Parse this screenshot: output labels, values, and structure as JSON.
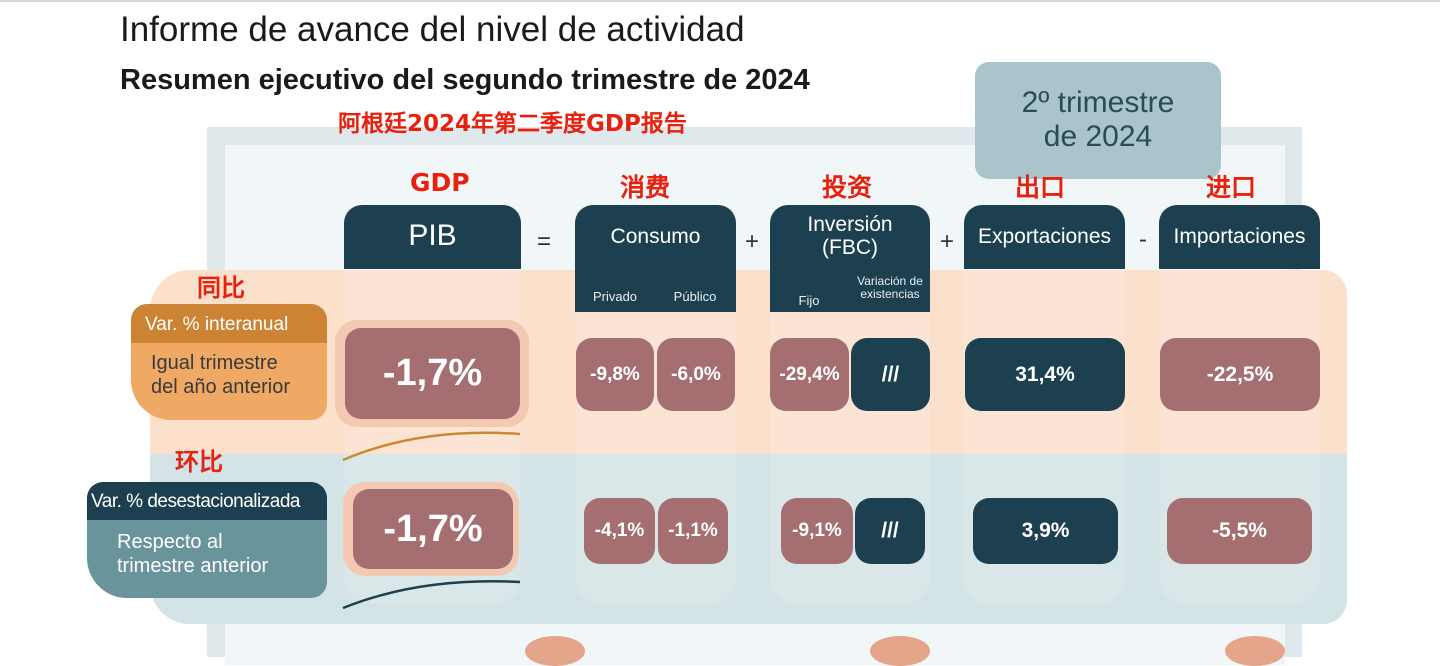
{
  "title": "Informe de avance del nivel de actividad",
  "subtitle": "Resumen ejecutivo del segundo trimestre de 2024",
  "annotation_title": "阿根廷2024年第二季度GDP报告",
  "badge": {
    "line1": "2º trimestre",
    "line2": "de 2024"
  },
  "annotations": {
    "gdp": "GDP",
    "consumo": "消费",
    "inversion": "投资",
    "export": "出口",
    "import": "进口",
    "yoy": "同比",
    "qoq": "环比"
  },
  "operators": {
    "eq": "=",
    "plus1": "+",
    "plus2": "+",
    "minus": "-"
  },
  "headers": {
    "pib": "PIB",
    "consumo": {
      "label": "Consumo",
      "sub": [
        "Privado",
        "Público"
      ]
    },
    "inversion": {
      "line1": "Inversión",
      "line2": "(FBC)",
      "sub": [
        "Fijo",
        "Variación de existencias"
      ]
    },
    "exportaciones": "Exportaciones",
    "importaciones": "Importaciones"
  },
  "rows": {
    "interanual": {
      "header": "Var. % interanual",
      "line1": "Igual trimestre",
      "line2": "del año anterior",
      "values": {
        "pib": "-1,7%",
        "privado": "-9,8%",
        "publico": "-6,0%",
        "fijo": "-29,4%",
        "existencias": "///",
        "export": "31,4%",
        "import": "-22,5%"
      }
    },
    "desestacionalizada": {
      "header": "Var. % desestacionalizada",
      "line1": "Respecto al",
      "line2": "trimestre anterior",
      "values": {
        "pib": "-1,7%",
        "privado": "-4,1%",
        "publico": "-1,1%",
        "fijo": "-9,1%",
        "existencias": "///",
        "export": "3,9%",
        "import": "-5,5%"
      }
    }
  },
  "colors": {
    "dark": "#1d4050",
    "negative": "#a56f72",
    "orange": "#cc8333",
    "annotation": "#e8200e"
  }
}
